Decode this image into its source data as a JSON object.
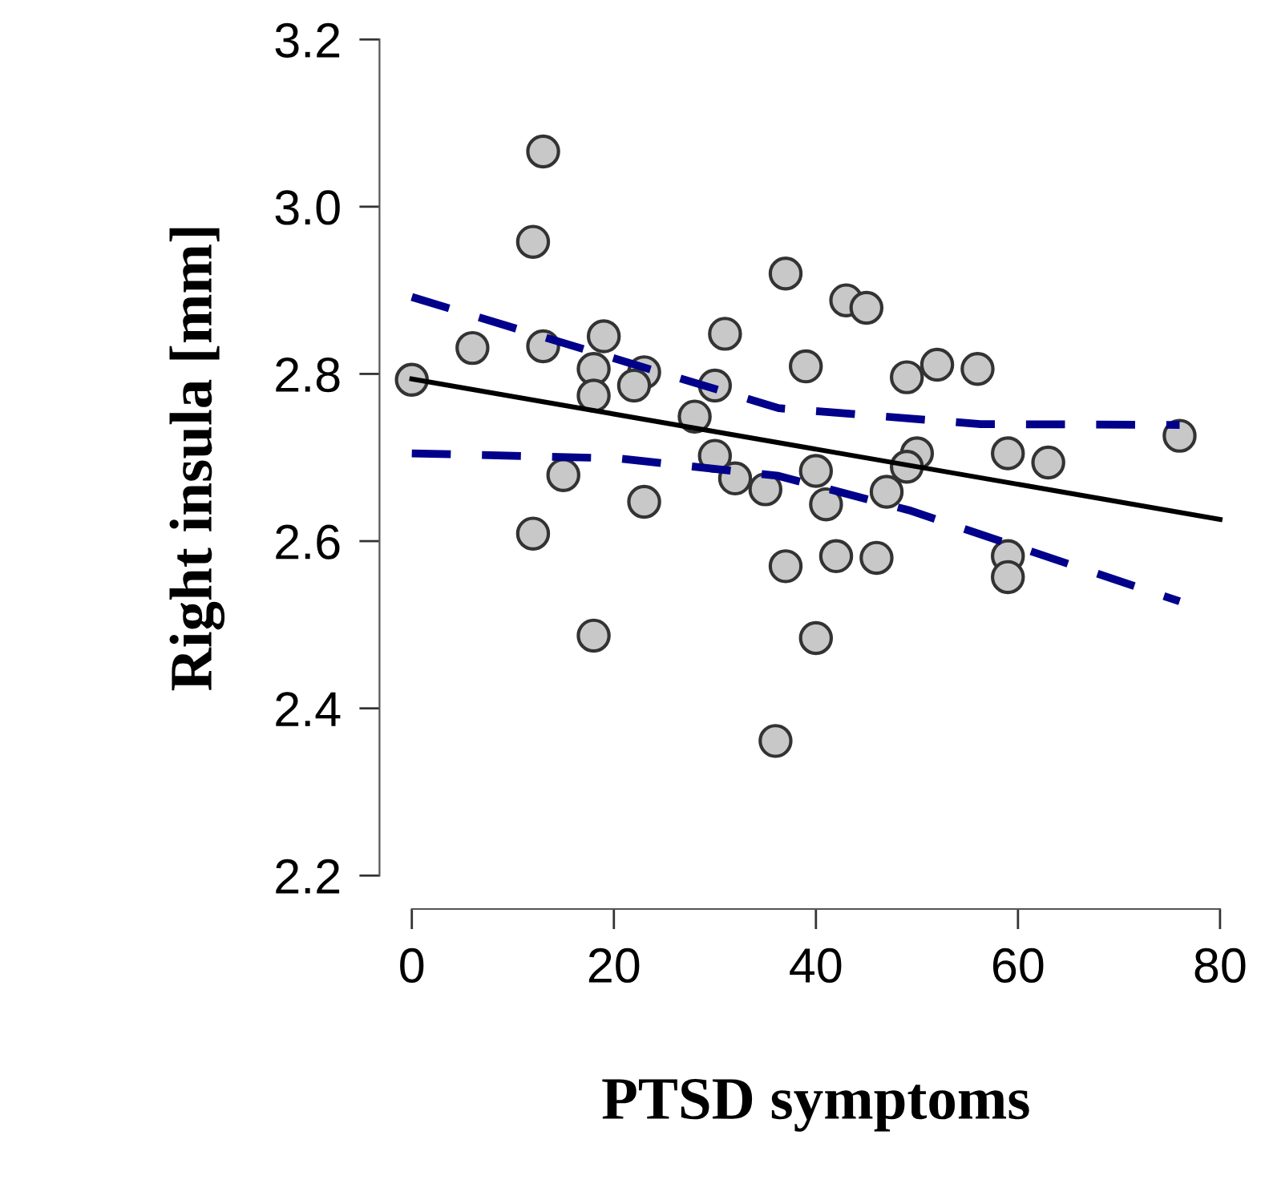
{
  "chart_data": {
    "type": "scatter",
    "xlabel": "PTSD symptoms",
    "ylabel": "Right insula [mm]",
    "xlim": [
      0,
      80
    ],
    "ylim": [
      2.2,
      3.2
    ],
    "xticks": [
      0,
      20,
      40,
      60,
      80
    ],
    "yticks": [
      {
        "value": 2.2,
        "label": "2.2"
      },
      {
        "value": 2.4,
        "label": "2.4"
      },
      {
        "value": 2.6,
        "label": "2.6"
      },
      {
        "value": 2.8,
        "label": "2.8"
      },
      {
        "value": 3.0,
        "label": "3.0"
      },
      {
        "value": 3.2,
        "label": "3.2"
      }
    ],
    "grid": false,
    "legend": false,
    "marker": "circle",
    "series": [
      {
        "color": "#c8c8c8",
        "x": [
          0,
          6,
          12,
          13,
          13,
          19,
          18,
          18,
          23,
          22,
          31,
          30,
          28,
          30,
          15,
          23,
          12,
          32,
          35,
          37,
          37,
          18,
          36,
          43,
          45,
          39,
          49,
          52,
          56,
          76,
          59,
          63,
          50,
          49,
          40,
          41,
          47,
          42,
          46,
          59,
          59,
          40
        ],
        "values": [
          2.793,
          2.831,
          2.958,
          3.066,
          2.833,
          2.845,
          2.806,
          2.774,
          2.802,
          2.786,
          2.848,
          2.786,
          2.749,
          2.702,
          2.679,
          2.647,
          2.609,
          2.675,
          2.662,
          2.92,
          2.57,
          2.487,
          2.361,
          2.888,
          2.879,
          2.809,
          2.796,
          2.811,
          2.806,
          2.726,
          2.705,
          2.694,
          2.705,
          2.689,
          2.684,
          2.644,
          2.659,
          2.582,
          2.58,
          2.582,
          2.557,
          2.484
        ]
      },
      {
        "type": "line",
        "color": "#000000",
        "line_style": "solid",
        "marker": "none",
        "x": [
          0,
          80
        ],
        "values": [
          2.794,
          2.626
        ]
      },
      {
        "type": "line",
        "color": "#00008b",
        "line_style": "dashed",
        "marker": "none",
        "x": [
          0,
          36.3,
          56.3,
          76
        ],
        "values": [
          2.892,
          2.759,
          2.74,
          2.739
        ]
      },
      {
        "type": "line",
        "color": "#00008b",
        "line_style": "dashed",
        "marker": "none",
        "x": [
          0,
          20.4,
          36.3,
          49.2,
          76
        ],
        "values": [
          2.705,
          2.699,
          2.678,
          2.637,
          2.528
        ]
      }
    ]
  }
}
